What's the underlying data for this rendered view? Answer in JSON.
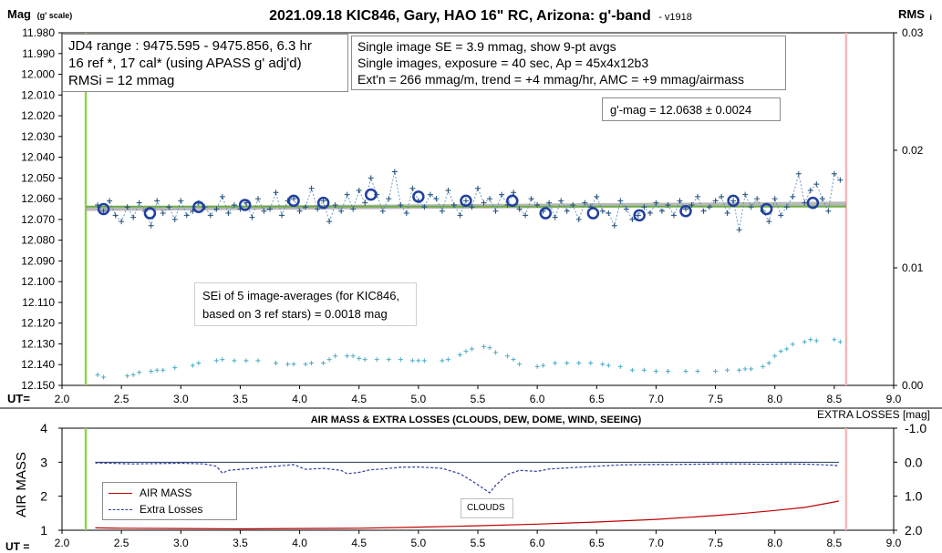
{
  "chart_data": [
    {
      "type": "scatter",
      "title": "2021.09.18 KIC846, Gary, HAO 16\" RC, Arizona: g'-band",
      "version": "- v1918",
      "ylabel": "Mag",
      "ylabel_unit": "(g' scale)",
      "y2label": "RMS",
      "y2label_sub": "i",
      "xlabel": "UT=",
      "xlim": [
        2.0,
        9.0
      ],
      "ylim": [
        11.98,
        12.15
      ],
      "y2lim": [
        0.0,
        0.03
      ],
      "x_ticks": [
        "2.0",
        "2.5",
        "3.0",
        "3.5",
        "4.0",
        "4.5",
        "5.0",
        "5.5",
        "6.0",
        "6.5",
        "7.0",
        "7.5",
        "8.0",
        "8.5",
        "9.0"
      ],
      "y_ticks": [
        "11.980",
        "11.990",
        "12.000",
        "12.010",
        "12.020",
        "12.030",
        "12.040",
        "12.050",
        "12.060",
        "12.070",
        "12.080",
        "12.090",
        "12.100",
        "12.110",
        "12.120",
        "12.130",
        "12.140",
        "12.150"
      ],
      "y2_ticks": [
        "0.03",
        "0.02",
        "0.01",
        "0.00"
      ],
      "y_inverted": true,
      "grid": false,
      "vertical_markers": [
        {
          "x": 2.2,
          "color": "#92d050"
        },
        {
          "x": 8.6,
          "color": "#f4b8b8"
        }
      ],
      "info_box_left": [
        "JD4 range : 9475.595 - 9475.856,  6.3  hr",
        "16 ref *, 17 cal* (using APASS g' adj'd)",
        "RMSi = 12 mmag"
      ],
      "info_box_right": [
        "Single image SE = 3.9 mmag, show  9-pt avgs",
        "Single images, exposure = 40 sec, Ap = 45x4x12b3",
        "Ext'n = 266 mmag/m, trend = +4 mmag/hr, AMC = +9 mmag/airmass"
      ],
      "gmag_label": "g'-mag = 12.0638 ± 0.0024",
      "sei_label": [
        "SEi of 5 image-averages (for KIC846,",
        "based on 3 ref stars) = 0.0018 mag"
      ],
      "mean_mag": 12.0638,
      "trend_line": [
        [
          2.2,
          12.0648
        ],
        [
          8.6,
          12.0625
        ]
      ],
      "series": [
        {
          "kind": "avg-9pt",
          "x": [
            2.35,
            2.74,
            3.15,
            3.54,
            3.95,
            4.2,
            4.6,
            5.0,
            5.4,
            5.79,
            6.07,
            6.47,
            6.86,
            7.25,
            7.65,
            7.93,
            8.32
          ],
          "y": [
            12.065,
            12.067,
            12.064,
            12.063,
            12.061,
            12.062,
            12.058,
            12.059,
            12.061,
            12.061,
            12.067,
            12.067,
            12.068,
            12.066,
            12.061,
            12.065,
            12.062
          ]
        },
        {
          "kind": "single-images",
          "x": [
            2.3,
            2.35,
            2.4,
            2.45,
            2.5,
            2.55,
            2.6,
            2.65,
            2.7,
            2.75,
            2.8,
            2.85,
            2.9,
            2.95,
            3.0,
            3.05,
            3.1,
            3.15,
            3.2,
            3.25,
            3.3,
            3.35,
            3.4,
            3.45,
            3.5,
            3.55,
            3.6,
            3.65,
            3.7,
            3.75,
            3.8,
            3.85,
            3.9,
            3.95,
            4.0,
            4.05,
            4.1,
            4.15,
            4.2,
            4.25,
            4.3,
            4.35,
            4.4,
            4.45,
            4.5,
            4.55,
            4.6,
            4.65,
            4.7,
            4.75,
            4.8,
            4.85,
            4.9,
            4.95,
            5.0,
            5.05,
            5.1,
            5.15,
            5.2,
            5.25,
            5.3,
            5.35,
            5.4,
            5.45,
            5.5,
            5.55,
            5.6,
            5.65,
            5.7,
            5.75,
            5.8,
            5.85,
            5.9,
            5.95,
            6.0,
            6.05,
            6.1,
            6.15,
            6.2,
            6.25,
            6.3,
            6.35,
            6.4,
            6.45,
            6.5,
            6.55,
            6.6,
            6.65,
            6.7,
            6.75,
            6.8,
            6.85,
            6.9,
            6.95,
            7.0,
            7.05,
            7.1,
            7.15,
            7.2,
            7.25,
            7.3,
            7.35,
            7.4,
            7.45,
            7.5,
            7.55,
            7.6,
            7.65,
            7.7,
            7.75,
            7.8,
            7.85,
            7.9,
            7.95,
            8.0,
            8.05,
            8.1,
            8.15,
            8.2,
            8.25,
            8.3,
            8.35,
            8.4,
            8.45,
            8.5,
            8.55
          ],
          "y": [
            12.063,
            12.066,
            12.061,
            12.068,
            12.071,
            12.064,
            12.069,
            12.062,
            12.066,
            12.073,
            12.061,
            12.067,
            12.064,
            12.07,
            12.061,
            12.068,
            12.066,
            12.062,
            12.064,
            12.068,
            12.065,
            12.059,
            12.067,
            12.063,
            12.065,
            12.062,
            12.069,
            12.06,
            12.066,
            12.065,
            12.057,
            12.068,
            12.061,
            12.06,
            12.066,
            12.064,
            12.055,
            12.065,
            12.061,
            12.071,
            12.063,
            12.066,
            12.058,
            12.065,
            12.056,
            12.062,
            12.05,
            12.058,
            12.066,
            12.06,
            12.047,
            12.063,
            12.067,
            12.055,
            12.061,
            12.064,
            12.058,
            12.06,
            12.066,
            12.056,
            12.063,
            12.068,
            12.061,
            12.064,
            12.055,
            12.062,
            12.06,
            12.066,
            12.058,
            12.063,
            12.057,
            12.065,
            12.068,
            12.06,
            12.063,
            12.066,
            12.062,
            12.069,
            12.061,
            12.066,
            12.063,
            12.07,
            12.062,
            12.064,
            12.059,
            12.066,
            12.067,
            12.073,
            12.061,
            12.065,
            12.07,
            12.068,
            12.064,
            12.067,
            12.062,
            12.066,
            12.063,
            12.068,
            12.061,
            12.065,
            12.063,
            12.059,
            12.066,
            12.064,
            12.061,
            12.059,
            12.067,
            12.061,
            12.075,
            12.058,
            12.064,
            12.06,
            12.066,
            12.071,
            12.06,
            12.068,
            12.064,
            12.059,
            12.048,
            12.062,
            12.056,
            12.053,
            12.06,
            12.066,
            12.048,
            12.051
          ],
          "y_range_note": "mag"
        },
        {
          "kind": "SEi",
          "axis": "y2",
          "x": [
            2.3,
            2.35,
            2.55,
            2.6,
            2.65,
            2.75,
            2.8,
            2.85,
            2.95,
            3.1,
            3.15,
            3.3,
            3.35,
            3.45,
            3.55,
            3.65,
            3.8,
            3.9,
            3.95,
            4.05,
            4.1,
            4.2,
            4.25,
            4.3,
            4.4,
            4.45,
            4.5,
            4.55,
            4.65,
            4.75,
            4.85,
            4.95,
            5.0,
            5.05,
            5.2,
            5.25,
            5.35,
            5.4,
            5.45,
            5.55,
            5.6,
            5.65,
            5.75,
            5.8,
            5.85,
            6.0,
            6.05,
            6.15,
            6.25,
            6.35,
            6.45,
            6.55,
            6.6,
            6.7,
            6.8,
            6.9,
            7.0,
            7.1,
            7.25,
            7.35,
            7.5,
            7.6,
            7.7,
            7.75,
            7.8,
            7.9,
            7.95,
            8.0,
            8.05,
            8.1,
            8.15,
            8.25,
            8.3,
            8.35,
            8.5,
            8.55
          ],
          "y": [
            0.0009,
            0.0007,
            0.0008,
            0.0009,
            0.0011,
            0.0012,
            0.0013,
            0.0013,
            0.0015,
            0.0017,
            0.0019,
            0.0021,
            0.0022,
            0.0021,
            0.0021,
            0.0021,
            0.0019,
            0.0018,
            0.0018,
            0.0018,
            0.0019,
            0.0019,
            0.0022,
            0.0025,
            0.0025,
            0.0025,
            0.0023,
            0.0022,
            0.0022,
            0.0022,
            0.0022,
            0.0021,
            0.0021,
            0.0021,
            0.0021,
            0.0022,
            0.0026,
            0.0029,
            0.0031,
            0.0033,
            0.0032,
            0.0028,
            0.0025,
            0.0022,
            0.0018,
            0.0016,
            0.0017,
            0.0019,
            0.0019,
            0.0019,
            0.0019,
            0.0018,
            0.0017,
            0.0016,
            0.0013,
            0.0013,
            0.0012,
            0.0012,
            0.0012,
            0.0012,
            0.0012,
            0.0013,
            0.0013,
            0.0014,
            0.0014,
            0.0016,
            0.0019,
            0.0025,
            0.0029,
            0.0031,
            0.0035,
            0.0037,
            0.0039,
            0.0038,
            0.0039,
            0.0037
          ]
        }
      ]
    },
    {
      "type": "line",
      "title": "AIR MASS & EXTRA LOSSES (CLOUDS, DEW, DOME, WIND, SEEING)",
      "ylabel": "AIR MASS",
      "y2label": "EXTRA LOSSES [mag]",
      "xlabel": "UT =",
      "xlim": [
        2.0,
        9.0
      ],
      "ylim": [
        1,
        4
      ],
      "y2lim": [
        2.0,
        -1.0
      ],
      "x_ticks": [
        "2.0",
        "2.5",
        "3.0",
        "3.5",
        "4.0",
        "4.5",
        "5.0",
        "5.5",
        "6.0",
        "6.5",
        "7.0",
        "7.5",
        "8.0",
        "8.5",
        "9.0"
      ],
      "y_ticks": [
        "4",
        "3",
        "2",
        "1"
      ],
      "y2_ticks": [
        "-1.0",
        "0.0",
        "1.0",
        "2.0"
      ],
      "legend": [
        "AIR MASS",
        "Extra Losses"
      ],
      "legend_position": "bottom-left",
      "annotation": "CLOUDS",
      "reference_line": 0.0,
      "vertical_markers": [
        {
          "x": 2.2,
          "color": "#92d050"
        },
        {
          "x": 8.6,
          "color": "#f4b8b8"
        }
      ],
      "series": [
        {
          "name": "AIR MASS",
          "axis": "y",
          "color": "#c00000",
          "x": [
            2.28,
            2.5,
            3.0,
            3.5,
            4.0,
            4.5,
            5.0,
            5.5,
            6.0,
            6.5,
            7.0,
            7.5,
            7.75,
            8.0,
            8.25,
            8.5,
            8.54
          ],
          "y": [
            1.07,
            1.06,
            1.05,
            1.04,
            1.05,
            1.06,
            1.09,
            1.13,
            1.18,
            1.24,
            1.32,
            1.43,
            1.5,
            1.58,
            1.67,
            1.83,
            1.86
          ]
        },
        {
          "name": "Extra Losses",
          "axis": "y2",
          "color": "#2f3d9e",
          "x": [
            2.28,
            2.4,
            2.6,
            2.8,
            3.0,
            3.2,
            3.3,
            3.35,
            3.4,
            3.6,
            3.8,
            3.95,
            4.05,
            4.2,
            4.35,
            4.4,
            4.5,
            4.6,
            4.7,
            4.85,
            5.0,
            5.1,
            5.2,
            5.35,
            5.45,
            5.55,
            5.6,
            5.65,
            5.75,
            5.85,
            6.0,
            6.1,
            6.3,
            6.5,
            6.7,
            6.9,
            7.1,
            7.3,
            7.5,
            7.7,
            7.9,
            8.1,
            8.3,
            8.5,
            8.54
          ],
          "y": [
            0.02,
            0.03,
            0.05,
            0.04,
            0.03,
            0.05,
            0.12,
            0.32,
            0.24,
            0.18,
            0.12,
            0.07,
            0.21,
            0.18,
            0.24,
            0.34,
            0.3,
            0.22,
            0.2,
            0.15,
            0.14,
            0.16,
            0.18,
            0.34,
            0.55,
            0.78,
            0.9,
            0.68,
            0.36,
            0.24,
            0.27,
            0.2,
            0.16,
            0.12,
            0.08,
            0.07,
            0.07,
            0.06,
            0.05,
            0.05,
            0.06,
            0.05,
            0.06,
            0.09,
            0.11
          ]
        }
      ]
    }
  ]
}
